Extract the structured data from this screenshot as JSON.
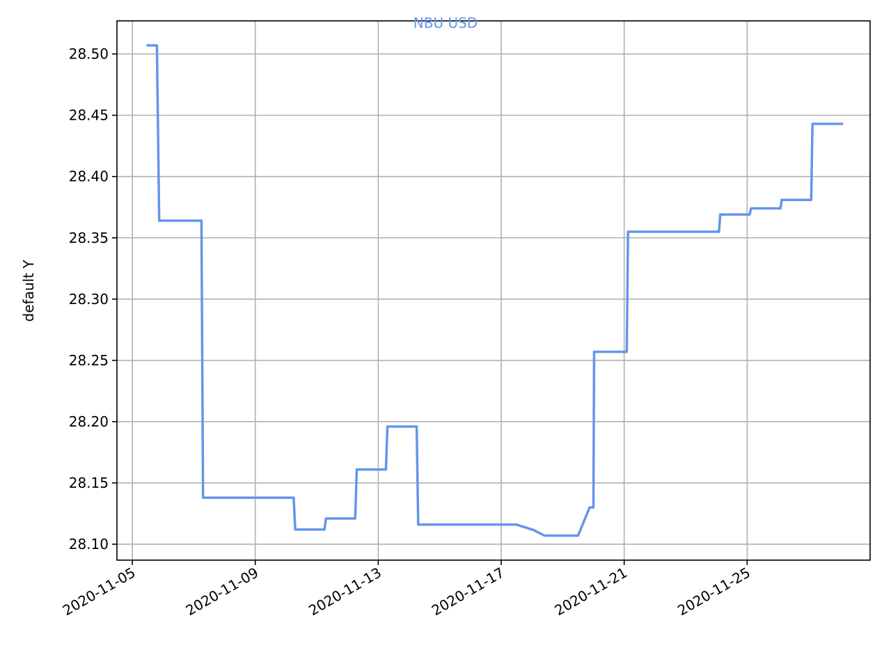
{
  "chart_data": {
    "type": "line",
    "title": "NBU USD",
    "xlabel": "",
    "ylabel": "default Y",
    "line_color": "#6495ed",
    "x_axis": {
      "kind": "date",
      "range": [
        "2020-11-04 12:00",
        "2020-11-29 00:00"
      ],
      "ticks": [
        "2020-11-05",
        "2020-11-09",
        "2020-11-13",
        "2020-11-17",
        "2020-11-21",
        "2020-11-25"
      ]
    },
    "y_axis": {
      "range": [
        28.087,
        28.527
      ],
      "ticks": [
        "28.10",
        "28.15",
        "28.20",
        "28.25",
        "28.30",
        "28.35",
        "28.40",
        "28.45",
        "28.50"
      ]
    },
    "grid": true,
    "series": [
      {
        "name": "",
        "x": [
          "2020-11-05 12:00",
          "2020-11-05 19:00",
          "2020-11-05 19:12",
          "2020-11-05 21:00",
          "2020-11-07 06:00",
          "2020-11-07 07:12",
          "2020-11-10 06:00",
          "2020-11-10 07:12",
          "2020-11-11 06:00",
          "2020-11-11 07:12",
          "2020-11-12 06:00",
          "2020-11-12 07:12",
          "2020-11-13 06:00",
          "2020-11-13 07:12",
          "2020-11-14 06:00",
          "2020-11-14 07:12",
          "2020-11-16 12:00",
          "2020-11-17 12:00",
          "2020-11-18 00:00",
          "2020-11-18 00:30",
          "2020-11-18 10:00",
          "2020-11-19 12:00",
          "2020-11-19 21:00",
          "2020-11-20 00:00",
          "2020-11-20 00:30",
          "2020-11-21 02:00",
          "2020-11-21 03:00",
          "2020-11-24 02:00",
          "2020-11-24 03:00",
          "2020-11-25 02:00",
          "2020-11-25 03:00",
          "2020-11-26 02:00",
          "2020-11-26 03:00",
          "2020-11-27 02:00",
          "2020-11-27 03:00",
          "2020-11-28 02:00"
        ],
        "y": [
          28.507,
          28.507,
          28.507,
          28.364,
          28.364,
          28.138,
          28.138,
          28.112,
          28.112,
          28.121,
          28.121,
          28.161,
          28.161,
          28.196,
          28.196,
          28.116,
          28.116,
          28.116,
          28.112,
          28.112,
          28.107,
          28.107,
          28.13,
          28.13,
          28.257,
          28.257,
          28.355,
          28.355,
          28.369,
          28.369,
          28.374,
          28.374,
          28.381,
          28.381,
          28.443,
          28.443
        ]
      }
    ]
  }
}
